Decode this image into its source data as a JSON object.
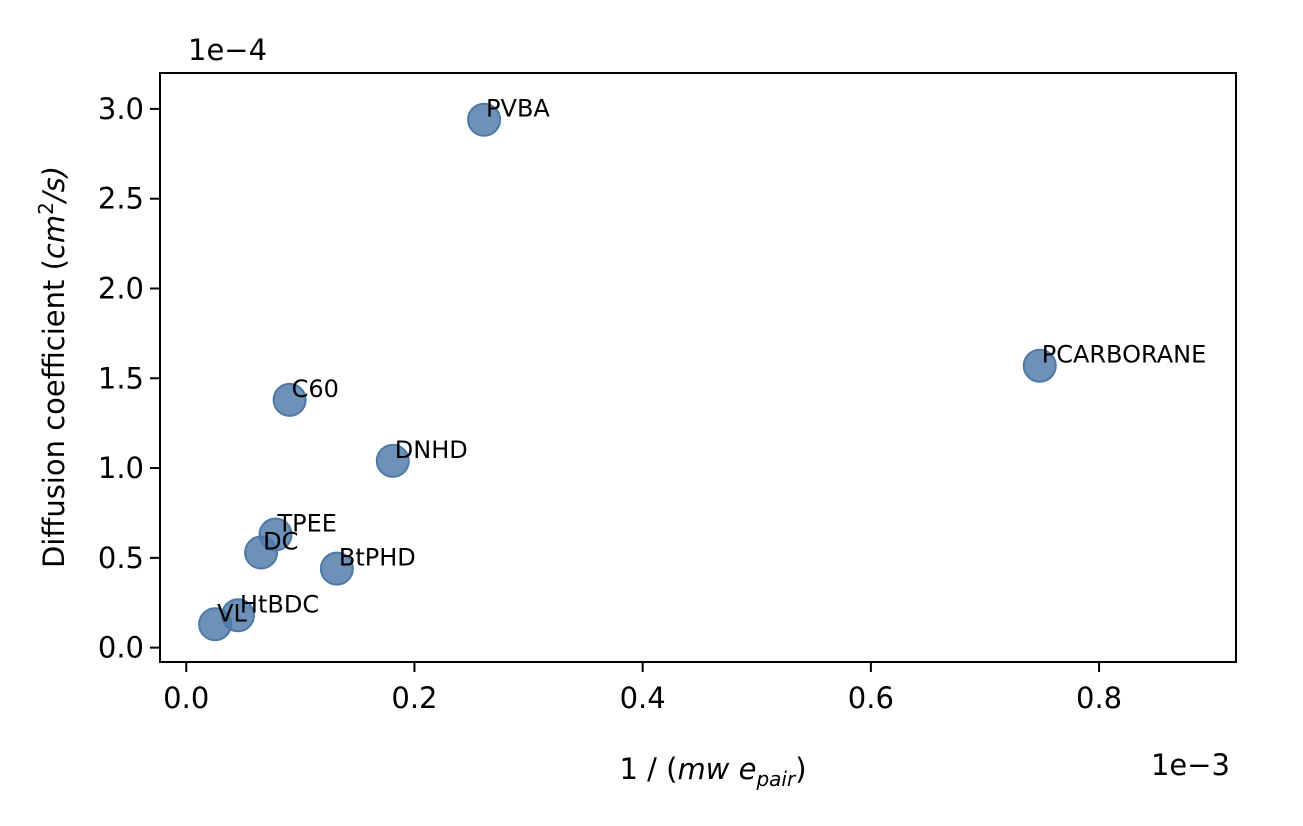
{
  "chart_data": {
    "type": "scatter",
    "xlabel_parts": {
      "prefix": "1 / (",
      "mw": "mw",
      "e": "e",
      "sub": "pair",
      "suffix": ")"
    },
    "ylabel_parts": {
      "prefix": "Diffusion coefficient (",
      "cm": "cm",
      "sup": "2",
      "suffix": "/s)"
    },
    "x_offset_text": "1e−3",
    "y_offset_text": "1e−4",
    "xlim": [
      -2.3e-05,
      0.00092
    ],
    "ylim": [
      -8e-07,
      3.2e-05
    ],
    "xticks": [
      0,
      0.0002,
      0.0004,
      0.0006,
      0.0008
    ],
    "xtick_labels": [
      "0.0",
      "0.2",
      "0.4",
      "0.6",
      "0.8"
    ],
    "yticks": [
      0,
      5e-06,
      1e-05,
      1.5e-05,
      2e-05,
      2.5e-05,
      3e-05
    ],
    "ytick_labels": [
      "0.0",
      "0.5",
      "1.0",
      "1.5",
      "2.0",
      "2.5",
      "3.0"
    ],
    "grid": false,
    "marker_color": "#4e79a7",
    "points": [
      {
        "label": "PVBA",
        "x": 0.000261,
        "y": 2.94e-05
      },
      {
        "label": "PCARBORANE",
        "x": 0.000748,
        "y": 1.57e-05
      },
      {
        "label": "C60",
        "x": 9.06e-05,
        "y": 1.38e-05
      },
      {
        "label": "DNHD",
        "x": 0.000181,
        "y": 1.04e-05
      },
      {
        "label": "TPEE",
        "x": 7.82e-05,
        "y": 6.3e-06
      },
      {
        "label": "DC",
        "x": 6.56e-05,
        "y": 5.3e-06
      },
      {
        "label": "BtPHD",
        "x": 0.000132,
        "y": 4.4e-06
      },
      {
        "label": "HtBDC",
        "x": 4.53e-05,
        "y": 1.8e-06
      },
      {
        "label": "VL",
        "x": 2.53e-05,
        "y": 1.3e-06
      }
    ]
  }
}
